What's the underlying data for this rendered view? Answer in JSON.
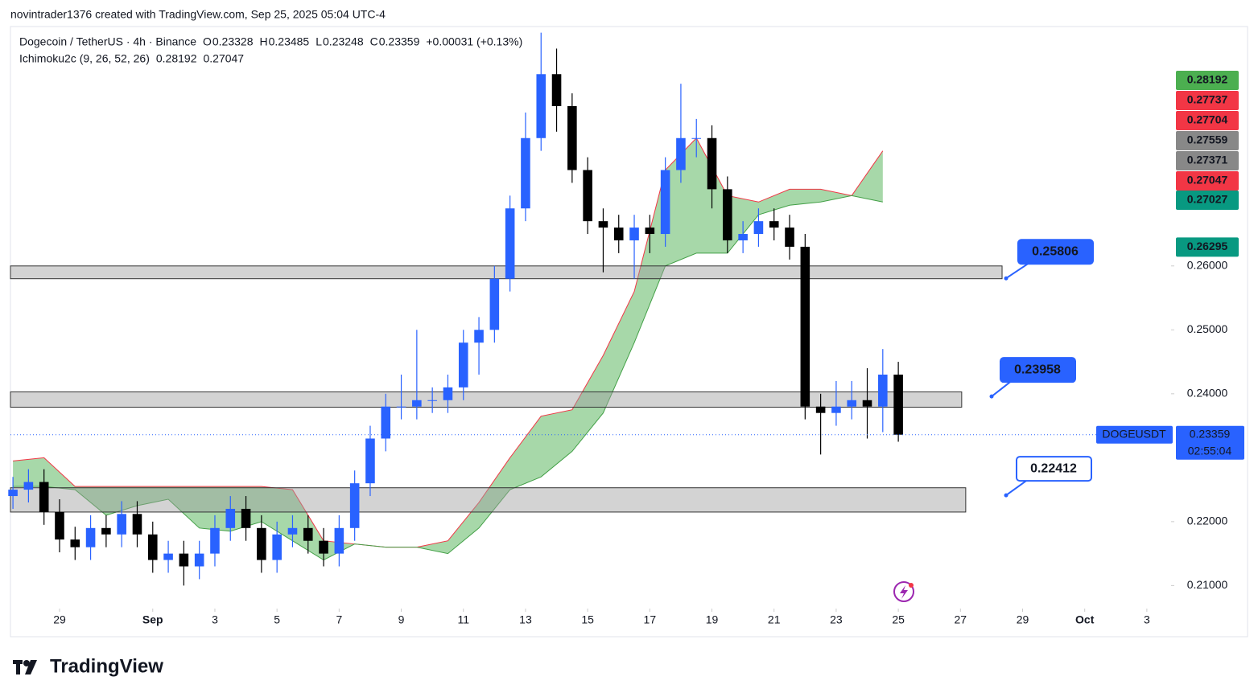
{
  "header": {
    "credit": "novintrader1376 created with TradingView.com, Sep 25, 2025 05:04 UTC-4",
    "brand": "TradingView"
  },
  "chart_data": {
    "type": "candlestick",
    "symbol": "Dogecoin / TetherUS · 4h · Binance",
    "ohlc_legend": [
      {
        "label": "O",
        "value": 0.23328
      },
      {
        "label": "H",
        "value": 0.23485
      },
      {
        "label": "L",
        "value": 0.23248
      },
      {
        "label": "C",
        "value": 0.23359
      }
    ],
    "change": "+0.00031 (+0.13%)",
    "indicator": {
      "name": "Ichimoku2c (9, 26, 52, 26)",
      "values": [
        0.28192,
        0.27047
      ],
      "colors": [
        "#43a047",
        "#f23645"
      ]
    },
    "up_color": "#2962ff",
    "down_color": "#000000",
    "x": [
      27.5,
      28,
      28.5,
      29,
      29.5,
      30,
      30.5,
      31,
      31.5,
      32,
      32.5,
      33,
      33.5,
      34,
      34.5,
      35,
      35.5,
      36,
      36.5,
      37,
      37.5,
      38,
      38.5,
      39,
      39.5,
      40,
      40.5,
      41,
      41.5,
      42,
      42.5,
      43,
      43.5,
      44,
      44.5,
      45,
      45.5,
      46,
      46.5,
      47,
      47.5,
      48,
      48.5,
      49,
      49.5,
      50,
      50.5,
      51,
      51.5,
      52,
      52.5,
      53,
      53.5,
      54,
      54.5,
      55,
      55.5,
      56
    ],
    "open": [
      0.224,
      0.225,
      0.2262,
      0.2215,
      0.2172,
      0.216,
      0.219,
      0.218,
      0.2212,
      0.218,
      0.214,
      0.215,
      0.213,
      0.215,
      0.219,
      0.222,
      0.219,
      0.214,
      0.218,
      0.219,
      0.217,
      0.215,
      0.219,
      0.226,
      0.233,
      0.238,
      0.238,
      0.239,
      0.239,
      0.241,
      0.248,
      0.25,
      0.258,
      0.269,
      0.28,
      0.29,
      0.285,
      0.275,
      0.267,
      0.266,
      0.264,
      0.266,
      0.265,
      0.275,
      0.28,
      0.28,
      0.272,
      0.264,
      0.265,
      0.267,
      0.266,
      0.263,
      0.238,
      0.237,
      0.238,
      0.239,
      0.238,
      0.243
    ],
    "high": [
      0.227,
      0.2282,
      0.2282,
      0.2235,
      0.2192,
      0.221,
      0.221,
      0.2232,
      0.2232,
      0.22,
      0.217,
      0.217,
      0.217,
      0.221,
      0.224,
      0.224,
      0.221,
      0.22,
      0.221,
      0.221,
      0.219,
      0.221,
      0.228,
      0.235,
      0.24,
      0.243,
      0.25,
      0.241,
      0.243,
      0.25,
      0.252,
      0.26,
      0.271,
      0.284,
      0.2965,
      0.294,
      0.287,
      0.277,
      0.269,
      0.268,
      0.268,
      0.268,
      0.277,
      0.2885,
      0.283,
      0.282,
      0.274,
      0.267,
      0.269,
      0.269,
      0.268,
      0.265,
      0.24,
      0.242,
      0.242,
      0.244,
      0.247,
      0.245
    ],
    "low": [
      0.222,
      0.223,
      0.2195,
      0.2152,
      0.214,
      0.214,
      0.216,
      0.216,
      0.216,
      0.212,
      0.212,
      0.21,
      0.211,
      0.213,
      0.217,
      0.217,
      0.212,
      0.212,
      0.216,
      0.215,
      0.213,
      0.213,
      0.217,
      0.224,
      0.231,
      0.236,
      0.236,
      0.237,
      0.237,
      0.239,
      0.243,
      0.248,
      0.256,
      0.267,
      0.278,
      0.281,
      0.273,
      0.265,
      0.259,
      0.262,
      0.258,
      0.262,
      0.263,
      0.273,
      0.277,
      0.269,
      0.262,
      0.262,
      0.263,
      0.264,
      0.261,
      0.236,
      0.2305,
      0.235,
      0.236,
      0.233,
      0.234,
      0.2325
    ],
    "close": [
      0.225,
      0.2262,
      0.2215,
      0.2172,
      0.216,
      0.219,
      0.218,
      0.2212,
      0.218,
      0.214,
      0.215,
      0.213,
      0.215,
      0.219,
      0.222,
      0.219,
      0.214,
      0.218,
      0.219,
      0.217,
      0.215,
      0.219,
      0.226,
      0.233,
      0.238,
      0.238,
      0.239,
      0.239,
      0.241,
      0.248,
      0.25,
      0.258,
      0.269,
      0.28,
      0.29,
      0.285,
      0.275,
      0.267,
      0.266,
      0.264,
      0.266,
      0.265,
      0.275,
      0.28,
      0.28,
      0.272,
      0.264,
      0.265,
      0.267,
      0.266,
      0.263,
      0.238,
      0.237,
      0.238,
      0.239,
      0.238,
      0.243,
      0.2336
    ],
    "cloud": {
      "x": [
        27.5,
        28.5,
        29.5,
        30.5,
        31.5,
        32.5,
        33.5,
        34.5,
        35.5,
        36.5,
        37.5,
        38.5,
        39.5,
        40.5,
        41.5,
        42.5,
        43.5,
        44.5,
        45.5,
        46.5,
        47.5,
        48.5,
        49.5,
        50.5,
        51.5,
        52.5,
        53.5,
        54.5,
        55.5
      ],
      "upper": [
        0.2295,
        0.23,
        0.2255,
        0.2255,
        0.2255,
        0.2255,
        0.2255,
        0.2255,
        0.2255,
        0.225,
        0.217,
        0.2165,
        0.216,
        0.216,
        0.217,
        0.223,
        0.23,
        0.2365,
        0.2375,
        0.246,
        0.256,
        0.275,
        0.28,
        0.271,
        0.27,
        0.272,
        0.272,
        0.271,
        0.278
      ],
      "lower": [
        0.2255,
        0.2255,
        0.225,
        0.221,
        0.2225,
        0.2235,
        0.219,
        0.2185,
        0.22,
        0.217,
        0.214,
        0.2165,
        0.216,
        0.216,
        0.215,
        0.219,
        0.225,
        0.227,
        0.231,
        0.237,
        0.248,
        0.26,
        0.262,
        0.262,
        0.268,
        0.2695,
        0.27,
        0.271,
        0.27
      ],
      "upper_color": "#f23645",
      "lower_color": "#43a047",
      "fill": "#81c784"
    },
    "zones": [
      {
        "low": 0.258,
        "high": 0.26,
        "x_end": 59.34
      },
      {
        "low": 0.2379,
        "high": 0.2403,
        "x_end": 58.04
      },
      {
        "low": 0.2215,
        "high": 0.2253,
        "x_end": 58.17
      }
    ],
    "annotations": [
      {
        "value": 0.25806,
        "filled": true
      },
      {
        "value": 0.23958,
        "filled": true
      },
      {
        "value": 0.22412,
        "filled": false
      }
    ],
    "price_labels": [
      {
        "value": 0.28192,
        "color": "#4caf50"
      },
      {
        "value": 0.27737,
        "color": "#f23645"
      },
      {
        "value": 0.27704,
        "color": "#f23645"
      },
      {
        "value": 0.27559,
        "color": "#888888"
      },
      {
        "value": 0.27371,
        "color": "#888888"
      },
      {
        "value": 0.27047,
        "color": "#f23645"
      },
      {
        "value": 0.27027,
        "color": "#089981"
      },
      {
        "value": 0.26295,
        "color": "#089981"
      }
    ],
    "last": {
      "name": "DOGEUSDT",
      "value": 0.23359,
      "countdown": "02:55:04",
      "color": "#2962ff"
    },
    "xlim": [
      27.42,
      64.78
    ],
    "ylim": [
      0.2064,
      0.2972
    ],
    "xticks": [
      29,
      {
        "value": 32,
        "label": "Sep"
      },
      {
        "value": 34,
        "label": "3"
      },
      {
        "value": 36,
        "label": "5"
      },
      {
        "value": 38,
        "label": "7"
      },
      {
        "value": 40,
        "label": "9"
      },
      {
        "value": 42,
        "label": "11"
      },
      {
        "value": 44,
        "label": "13"
      },
      {
        "value": 46,
        "label": "15"
      },
      {
        "value": 48,
        "label": "17"
      },
      {
        "value": 50,
        "label": "19"
      },
      {
        "value": 52,
        "label": "21"
      },
      {
        "value": 54,
        "label": "23"
      },
      {
        "value": 56,
        "label": "25"
      },
      {
        "value": 58,
        "label": "27"
      },
      {
        "value": 60,
        "label": "29"
      },
      {
        "value": 62,
        "label": "Oct"
      },
      {
        "value": 64,
        "label": "3"
      }
    ],
    "yticks": [
      {
        "value": 0.21,
        "label": "0.21000"
      },
      {
        "value": 0.22,
        "label": "0.22000"
      },
      {
        "value": 0.24,
        "label": "0.24000"
      },
      {
        "value": 0.25,
        "label": "0.25000"
      },
      {
        "value": 0.26,
        "label": "0.26000"
      }
    ]
  }
}
